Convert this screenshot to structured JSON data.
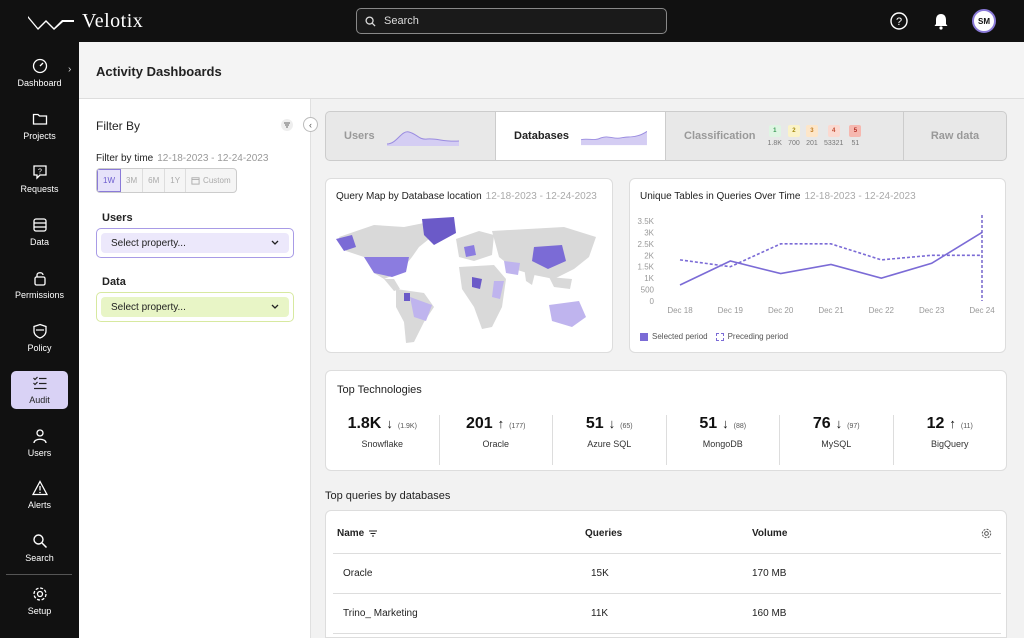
{
  "app": {
    "name": "Velotix"
  },
  "search": {
    "placeholder": "Search"
  },
  "user": {
    "initials": "SM"
  },
  "sidebar": {
    "items": [
      {
        "label": "Dashboard",
        "icon": "gauge-icon"
      },
      {
        "label": "Projects",
        "icon": "folder-icon"
      },
      {
        "label": "Requests",
        "icon": "request-icon"
      },
      {
        "label": "Data",
        "icon": "database-icon"
      },
      {
        "label": "Permissions",
        "icon": "lock-icon"
      },
      {
        "label": "Policy",
        "icon": "shield-icon"
      },
      {
        "label": "Audit",
        "icon": "checklist-icon",
        "active": true
      },
      {
        "label": "Users",
        "icon": "user-icon"
      },
      {
        "label": "Alerts",
        "icon": "alert-icon"
      },
      {
        "label": "Search",
        "icon": "search-icon"
      },
      {
        "label": "Setup",
        "icon": "gear-icon"
      }
    ]
  },
  "header": {
    "title": "Activity Dashboards"
  },
  "filter": {
    "title": "Filter By",
    "time_label": "Filter by time",
    "time_range": "12-18-2023 - 12-24-2023",
    "time_options": [
      "1W",
      "3M",
      "6M",
      "1Y",
      "Custom"
    ],
    "users_label": "Users",
    "users_placeholder": "Select property...",
    "data_label": "Data",
    "data_placeholder": "Select property..."
  },
  "tabs": {
    "users": "Users",
    "databases": "Databases",
    "classification": "Classification",
    "raw": "Raw data",
    "badges": [
      {
        "level": "1",
        "value": "1.8K",
        "color": "#dff5e3",
        "text": "#3a9a55"
      },
      {
        "level": "2",
        "value": "700",
        "color": "#fbf3c8",
        "text": "#a38a10"
      },
      {
        "level": "3",
        "value": "201",
        "color": "#fde6c9",
        "text": "#c07a20"
      },
      {
        "level": "4",
        "value": "53321",
        "color": "#fbd9d0",
        "text": "#c04a30"
      },
      {
        "level": "5",
        "value": "51",
        "color": "#f6b8b0",
        "text": "#b02a20"
      }
    ]
  },
  "map_card": {
    "title": "Query Map by Database location",
    "range": "12-18-2023 - 12-24-2023"
  },
  "line_card": {
    "title": "Unique Tables in Queries Over Time",
    "range": "12-18-2023 - 12-24-2023",
    "legend_selected": "Selected period",
    "legend_preceding": "Preceding period"
  },
  "chart_data": {
    "type": "line",
    "title": "Unique Tables in Queries Over Time",
    "x": [
      "Dec 18",
      "Dec 19",
      "Dec 20",
      "Dec 21",
      "Dec 22",
      "Dec 23",
      "Dec 24"
    ],
    "y_ticks": [
      "0",
      "500",
      "1K",
      "1.5K",
      "2K",
      "2.5K",
      "3K",
      "3.5K"
    ],
    "ylim": [
      0,
      3500
    ],
    "series": [
      {
        "name": "Selected period",
        "style": "solid",
        "color": "#7b6bd6",
        "values": [
          700,
          1750,
          1200,
          1600,
          1000,
          1650,
          3000
        ]
      },
      {
        "name": "Preceding period",
        "style": "dashed",
        "color": "#7b6bd6",
        "values": [
          1800,
          1500,
          2500,
          2500,
          1800,
          2000,
          2000
        ]
      }
    ]
  },
  "tech": {
    "title": "Top Technologies",
    "items": [
      {
        "value": "1.8K",
        "arrow": "↓",
        "prev": "(1.9K)",
        "name": "Snowflake"
      },
      {
        "value": "201",
        "arrow": "↑",
        "prev": "(177)",
        "name": "Oracle"
      },
      {
        "value": "51",
        "arrow": "↓",
        "prev": "(65)",
        "name": "Azure SQL"
      },
      {
        "value": "51",
        "arrow": "↓",
        "prev": "(88)",
        "name": "MongoDB"
      },
      {
        "value": "76",
        "arrow": "↓",
        "prev": "(97)",
        "name": "MySQL"
      },
      {
        "value": "12",
        "arrow": "↑",
        "prev": "(11)",
        "name": "BigQuery"
      }
    ]
  },
  "queries": {
    "title": "Top queries by databases",
    "columns": [
      "Name",
      "Queries",
      "Volume"
    ],
    "rows": [
      {
        "name": "Oracle",
        "queries": "15K",
        "volume": "170 MB"
      },
      {
        "name": "Trino_ Marketing",
        "queries": "11K",
        "volume": "160 MB"
      }
    ]
  }
}
